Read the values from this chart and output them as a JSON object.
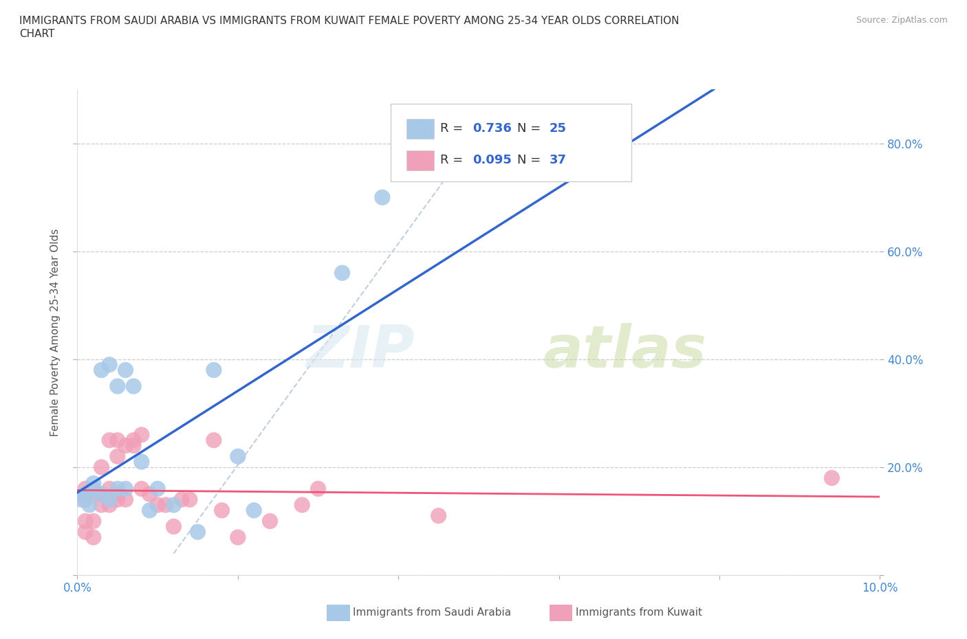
{
  "title_line1": "IMMIGRANTS FROM SAUDI ARABIA VS IMMIGRANTS FROM KUWAIT FEMALE POVERTY AMONG 25-34 YEAR OLDS CORRELATION",
  "title_line2": "CHART",
  "source": "Source: ZipAtlas.com",
  "ylabel": "Female Poverty Among 25-34 Year Olds",
  "xlim": [
    0.0,
    0.1
  ],
  "ylim": [
    0.0,
    0.9
  ],
  "x_ticks": [
    0.0,
    0.02,
    0.04,
    0.06,
    0.08,
    0.1
  ],
  "x_tick_labels": [
    "0.0%",
    "",
    "",
    "",
    "",
    "10.0%"
  ],
  "y_ticks": [
    0.0,
    0.2,
    0.4,
    0.6,
    0.8
  ],
  "y_tick_labels": [
    "",
    "20.0%",
    "40.0%",
    "60.0%",
    "80.0%"
  ],
  "saudi_R": "0.736",
  "saudi_N": "25",
  "kuwait_R": "0.095",
  "kuwait_N": "37",
  "saudi_color": "#a8c8e8",
  "kuwait_color": "#f0a0b8",
  "saudi_line_color": "#3366cc",
  "kuwait_line_color": "#ee5577",
  "diagonal_color": "#c0cfe0",
  "background": "#ffffff",
  "watermark_zip": "ZIP",
  "watermark_atlas": "atlas",
  "saudi_x": [
    0.0005,
    0.001,
    0.001,
    0.0015,
    0.002,
    0.002,
    0.003,
    0.003,
    0.004,
    0.004,
    0.005,
    0.005,
    0.006,
    0.006,
    0.007,
    0.008,
    0.009,
    0.01,
    0.012,
    0.015,
    0.017,
    0.02,
    0.022,
    0.033,
    0.038
  ],
  "saudi_y": [
    0.14,
    0.15,
    0.15,
    0.13,
    0.16,
    0.17,
    0.15,
    0.38,
    0.14,
    0.39,
    0.16,
    0.35,
    0.16,
    0.38,
    0.35,
    0.21,
    0.12,
    0.16,
    0.13,
    0.08,
    0.38,
    0.22,
    0.12,
    0.56,
    0.7
  ],
  "kuwait_x": [
    0.001,
    0.001,
    0.001,
    0.001,
    0.002,
    0.002,
    0.002,
    0.003,
    0.003,
    0.003,
    0.004,
    0.004,
    0.004,
    0.005,
    0.005,
    0.005,
    0.005,
    0.006,
    0.006,
    0.007,
    0.007,
    0.008,
    0.008,
    0.009,
    0.01,
    0.011,
    0.012,
    0.013,
    0.014,
    0.017,
    0.018,
    0.02,
    0.024,
    0.028,
    0.03,
    0.045,
    0.094
  ],
  "kuwait_y": [
    0.08,
    0.1,
    0.14,
    0.16,
    0.07,
    0.1,
    0.15,
    0.13,
    0.15,
    0.2,
    0.13,
    0.16,
    0.25,
    0.14,
    0.15,
    0.22,
    0.25,
    0.14,
    0.24,
    0.24,
    0.25,
    0.16,
    0.26,
    0.15,
    0.13,
    0.13,
    0.09,
    0.14,
    0.14,
    0.25,
    0.12,
    0.07,
    0.1,
    0.13,
    0.16,
    0.11,
    0.18
  ],
  "legend_label1": "Immigrants from Saudi Arabia",
  "legend_label2": "Immigrants from Kuwait"
}
